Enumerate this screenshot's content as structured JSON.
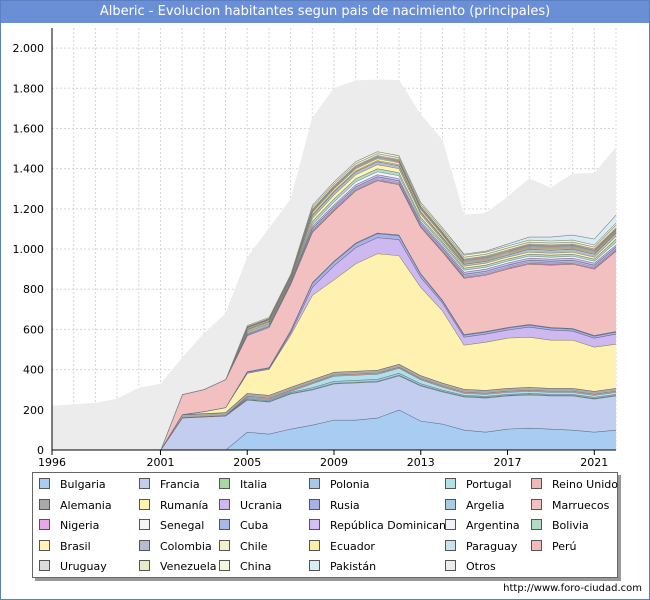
{
  "title": "Alberic - Evolucion habitantes segun pais de nacimiento (principales)",
  "footer": "http://www.foro-ciudad.com",
  "chart_data": {
    "type": "area",
    "stacked": true,
    "ylim": [
      0,
      2100
    ],
    "y_ticks": [
      0,
      200,
      400,
      600,
      800,
      1000,
      1200,
      1400,
      1600,
      1800,
      2000
    ],
    "y_tick_labels": [
      "0",
      "200",
      "400",
      "600",
      "800",
      "1.000",
      "1.200",
      "1.400",
      "1.600",
      "1.800",
      "2.000"
    ],
    "x_tick_labels": [
      "1996",
      "2001",
      "2005",
      "2009",
      "2013",
      "2017",
      "2021"
    ],
    "x": [
      1996,
      1997,
      1998,
      1999,
      2000,
      2001,
      2002,
      2003,
      2004,
      2005,
      2006,
      2007,
      2008,
      2009,
      2010,
      2011,
      2012,
      2013,
      2014,
      2015,
      2016,
      2017,
      2018,
      2019,
      2020,
      2021,
      2022
    ],
    "grid": true,
    "total_outline": [
      220,
      228,
      235,
      255,
      310,
      330,
      460,
      580,
      680,
      970,
      1080,
      1210,
      1620,
      1820,
      1860,
      1850,
      1880,
      1680,
      1560,
      1280,
      1280,
      1350,
      1440,
      1400,
      1450,
      1470,
      1590
    ],
    "series": [
      {
        "name": "Bulgaria",
        "color": "#a9cdf2",
        "values": [
          0,
          0,
          0,
          0,
          0,
          0,
          0,
          0,
          0,
          90,
          80,
          105,
          125,
          150,
          150,
          160,
          200,
          145,
          130,
          100,
          90,
          105,
          110,
          105,
          100,
          90,
          100
        ]
      },
      {
        "name": "Francia",
        "color": "#c3cdef",
        "values": [
          0,
          0,
          0,
          0,
          0,
          0,
          160,
          165,
          170,
          160,
          160,
          175,
          175,
          180,
          185,
          180,
          170,
          175,
          160,
          165,
          170,
          165,
          165,
          165,
          170,
          165,
          170
        ]
      },
      {
        "name": "Italia",
        "color": "#a6d8a6",
        "values": [
          0,
          0,
          0,
          0,
          0,
          0,
          2,
          2,
          2,
          3,
          3,
          3,
          3,
          3,
          3,
          3,
          3,
          3,
          3,
          3,
          3,
          3,
          3,
          3,
          3,
          3,
          3
        ]
      },
      {
        "name": "Polonia",
        "color": "#a7c9e8",
        "values": [
          0,
          0,
          0,
          0,
          0,
          0,
          0,
          0,
          0,
          5,
          5,
          5,
          8,
          10,
          10,
          10,
          10,
          8,
          6,
          5,
          5,
          5,
          5,
          5,
          5,
          5,
          5
        ]
      },
      {
        "name": "Portugal",
        "color": "#b0e0e8",
        "values": [
          0,
          0,
          0,
          0,
          0,
          0,
          0,
          0,
          0,
          5,
          5,
          5,
          20,
          25,
          25,
          25,
          25,
          20,
          15,
          10,
          10,
          10,
          10,
          10,
          10,
          10,
          10
        ]
      },
      {
        "name": "Reino Unido",
        "color": "#f2b8b8",
        "values": [
          0,
          0,
          0,
          0,
          0,
          0,
          0,
          0,
          0,
          5,
          5,
          5,
          5,
          5,
          5,
          5,
          5,
          5,
          5,
          5,
          5,
          5,
          5,
          5,
          5,
          5,
          5
        ]
      },
      {
        "name": "Alemania",
        "color": "#a9a9a9",
        "values": [
          0,
          0,
          0,
          0,
          0,
          0,
          15,
          15,
          15,
          15,
          15,
          15,
          15,
          15,
          15,
          15,
          15,
          15,
          15,
          15,
          15,
          15,
          15,
          15,
          15,
          15,
          15
        ]
      },
      {
        "name": "Rumanía",
        "color": "#fff2b0",
        "values": [
          0,
          0,
          0,
          0,
          0,
          0,
          0,
          10,
          25,
          100,
          130,
          260,
          420,
          460,
          535,
          580,
          540,
          440,
          360,
          220,
          240,
          250,
          250,
          240,
          240,
          220,
          220
        ]
      },
      {
        "name": "Ucrania",
        "color": "#cdb8f0",
        "values": [
          0,
          0,
          0,
          0,
          0,
          0,
          0,
          0,
          0,
          0,
          0,
          10,
          40,
          70,
          80,
          80,
          80,
          50,
          40,
          40,
          40,
          40,
          50,
          50,
          45,
          45,
          50
        ]
      },
      {
        "name": "Rusia",
        "color": "#a8b2e6",
        "values": [
          0,
          0,
          0,
          0,
          0,
          0,
          0,
          0,
          0,
          5,
          5,
          10,
          20,
          20,
          20,
          20,
          20,
          15,
          10,
          10,
          10,
          10,
          10,
          10,
          10,
          10,
          10
        ]
      },
      {
        "name": "Argelia",
        "color": "#aacbe6",
        "values": [
          0,
          0,
          0,
          0,
          0,
          0,
          0,
          0,
          0,
          3,
          3,
          3,
          3,
          3,
          3,
          3,
          3,
          3,
          3,
          3,
          3,
          3,
          3,
          3,
          3,
          3,
          3
        ]
      },
      {
        "name": "Marruecos",
        "color": "#f2c0c0",
        "values": [
          0,
          0,
          0,
          0,
          0,
          0,
          100,
          110,
          140,
          180,
          200,
          230,
          250,
          250,
          260,
          260,
          250,
          230,
          240,
          280,
          280,
          290,
          300,
          310,
          320,
          330,
          400
        ]
      },
      {
        "name": "Nigeria",
        "color": "#e8a8e8",
        "values": [
          0,
          0,
          0,
          0,
          0,
          0,
          0,
          0,
          0,
          0,
          0,
          0,
          5,
          5,
          5,
          5,
          5,
          5,
          5,
          5,
          5,
          5,
          5,
          5,
          5,
          5,
          5
        ]
      },
      {
        "name": "Senegal",
        "color": "#f4f4f4",
        "values": [
          0,
          0,
          0,
          0,
          0,
          0,
          0,
          0,
          0,
          0,
          0,
          0,
          5,
          5,
          5,
          5,
          5,
          5,
          5,
          5,
          5,
          5,
          5,
          5,
          5,
          5,
          5
        ]
      },
      {
        "name": "Cuba",
        "color": "#a8b8e8",
        "values": [
          0,
          0,
          0,
          0,
          0,
          0,
          0,
          0,
          0,
          5,
          5,
          5,
          10,
          10,
          10,
          10,
          10,
          10,
          10,
          10,
          10,
          10,
          10,
          10,
          10,
          10,
          10
        ]
      },
      {
        "name": "República Dominicana",
        "color": "#d4c0f4",
        "values": [
          0,
          0,
          0,
          0,
          0,
          0,
          0,
          0,
          0,
          5,
          5,
          5,
          10,
          10,
          10,
          10,
          10,
          10,
          10,
          10,
          10,
          10,
          10,
          10,
          10,
          10,
          10
        ]
      },
      {
        "name": "Argentina",
        "color": "#f0f4f8",
        "values": [
          0,
          0,
          0,
          0,
          0,
          0,
          0,
          0,
          0,
          5,
          5,
          5,
          10,
          15,
          15,
          15,
          15,
          10,
          10,
          10,
          10,
          10,
          10,
          10,
          10,
          10,
          15
        ]
      },
      {
        "name": "Bolivia",
        "color": "#b4dcc4",
        "values": [
          0,
          0,
          0,
          0,
          0,
          0,
          0,
          0,
          0,
          5,
          5,
          5,
          15,
          15,
          15,
          15,
          15,
          10,
          10,
          10,
          10,
          10,
          10,
          10,
          10,
          10,
          15
        ]
      },
      {
        "name": "Brasil",
        "color": "#fff4b8",
        "values": [
          0,
          0,
          0,
          0,
          0,
          0,
          0,
          0,
          0,
          5,
          5,
          5,
          15,
          20,
          20,
          20,
          20,
          15,
          10,
          10,
          10,
          10,
          10,
          10,
          10,
          10,
          15
        ]
      },
      {
        "name": "Colombia",
        "color": "#b4bcd0",
        "values": [
          0,
          0,
          0,
          0,
          0,
          0,
          0,
          0,
          0,
          5,
          5,
          5,
          15,
          15,
          15,
          15,
          15,
          10,
          10,
          10,
          10,
          10,
          15,
          15,
          15,
          15,
          15
        ]
      },
      {
        "name": "Chile",
        "color": "#f6f0c8",
        "values": [
          0,
          0,
          0,
          0,
          0,
          0,
          0,
          0,
          0,
          2,
          2,
          2,
          5,
          5,
          5,
          5,
          5,
          5,
          5,
          5,
          5,
          5,
          5,
          5,
          5,
          5,
          5
        ]
      },
      {
        "name": "Ecuador",
        "color": "#f8f0a8",
        "values": [
          0,
          0,
          0,
          0,
          0,
          0,
          0,
          0,
          0,
          5,
          5,
          5,
          10,
          10,
          10,
          10,
          10,
          10,
          10,
          5,
          5,
          5,
          5,
          5,
          5,
          5,
          5
        ]
      },
      {
        "name": "Paraguay",
        "color": "#c8e4ec",
        "values": [
          0,
          0,
          0,
          0,
          0,
          0,
          0,
          0,
          0,
          2,
          2,
          2,
          5,
          5,
          5,
          5,
          5,
          5,
          5,
          5,
          5,
          5,
          5,
          5,
          5,
          5,
          5
        ]
      },
      {
        "name": "Perú",
        "color": "#f6b8b8",
        "values": [
          0,
          0,
          0,
          0,
          0,
          0,
          0,
          0,
          0,
          2,
          2,
          2,
          5,
          5,
          5,
          5,
          5,
          5,
          5,
          5,
          5,
          5,
          5,
          5,
          5,
          5,
          5
        ]
      },
      {
        "name": "Uruguay",
        "color": "#dcdcdc",
        "values": [
          0,
          0,
          0,
          0,
          0,
          0,
          0,
          0,
          0,
          2,
          2,
          2,
          5,
          5,
          5,
          5,
          5,
          5,
          5,
          5,
          5,
          5,
          5,
          5,
          5,
          5,
          5
        ]
      },
      {
        "name": "Venezuela",
        "color": "#e4ecc8",
        "values": [
          0,
          0,
          0,
          0,
          0,
          0,
          0,
          0,
          0,
          2,
          2,
          2,
          10,
          10,
          10,
          10,
          10,
          10,
          10,
          10,
          10,
          10,
          10,
          10,
          10,
          10,
          15
        ]
      },
      {
        "name": "China",
        "color": "#f4f8d8",
        "values": [
          0,
          0,
          0,
          0,
          0,
          0,
          0,
          0,
          0,
          5,
          5,
          5,
          10,
          10,
          10,
          10,
          10,
          10,
          10,
          10,
          10,
          10,
          10,
          10,
          10,
          10,
          10
        ]
      },
      {
        "name": "Pakistán",
        "color": "#d8ecf8",
        "values": [
          0,
          0,
          0,
          0,
          0,
          0,
          0,
          0,
          0,
          0,
          0,
          0,
          0,
          0,
          0,
          0,
          0,
          0,
          0,
          5,
          5,
          10,
          15,
          20,
          25,
          30,
          40
        ]
      },
      {
        "name": "Otros",
        "color": "#ececec",
        "values": [
          220,
          228,
          235,
          255,
          310,
          330,
          183,
          278,
          328,
          338,
          443,
          373,
          436,
          465,
          403,
          357,
          375,
          436,
          436,
          196,
          188,
          235,
          290,
          245,
          305,
          327,
          337
        ]
      }
    ]
  }
}
